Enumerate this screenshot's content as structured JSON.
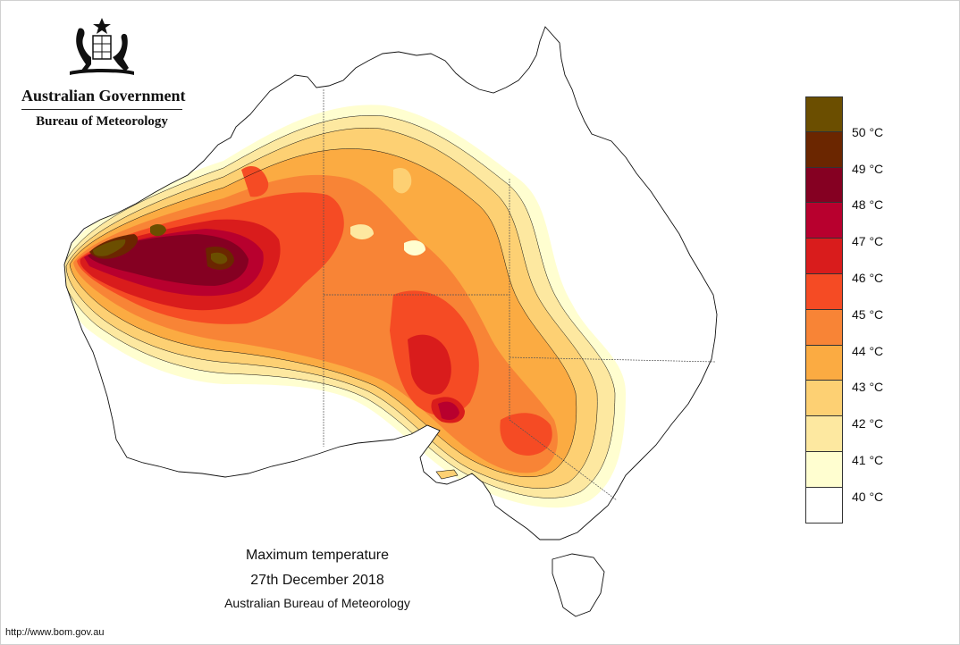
{
  "header": {
    "government": "Australian Government",
    "agency": "Bureau of Meteorology"
  },
  "caption": {
    "title": "Maximum temperature",
    "date": "27th December 2018",
    "source": "Australian Bureau of Meteorology"
  },
  "footer": {
    "url": "http://www.bom.gov.au"
  },
  "legend": {
    "unit": "°C",
    "levels": [
      {
        "value": "50",
        "color": "#6b4e00"
      },
      {
        "value": "49",
        "color": "#6b2600"
      },
      {
        "value": "48",
        "color": "#850022"
      },
      {
        "value": "47",
        "color": "#b8002e"
      },
      {
        "value": "46",
        "color": "#d91c1c"
      },
      {
        "value": "45",
        "color": "#f54b24"
      },
      {
        "value": "44",
        "color": "#f88436"
      },
      {
        "value": "43",
        "color": "#fbab42"
      },
      {
        "value": "42",
        "color": "#fdd073"
      },
      {
        "value": "41",
        "color": "#fde8a0"
      },
      {
        "value": "40",
        "color": "#fffed0"
      },
      {
        "value": "",
        "color": "#ffffff"
      }
    ]
  },
  "colors": {
    "outline": "#111111",
    "background": "#ffffff"
  }
}
